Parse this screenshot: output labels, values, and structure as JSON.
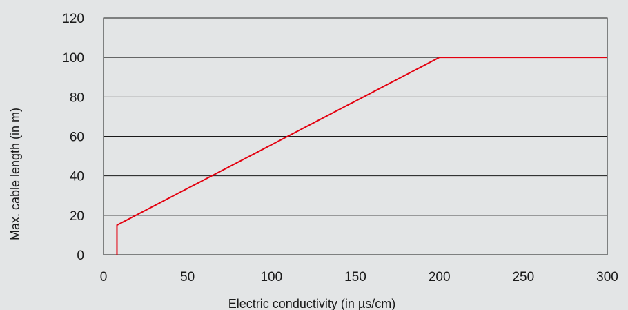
{
  "chart_data": {
    "type": "line",
    "title": "",
    "xlabel": "Electric conductivity (in µs/cm)",
    "ylabel": "Max. cable length (in m)",
    "xlim": [
      0,
      300
    ],
    "ylim": [
      0,
      120
    ],
    "x_ticks": [
      "0",
      "50",
      "100",
      "150",
      "200",
      "250",
      "300"
    ],
    "y_ticks": [
      "0",
      "20",
      "40",
      "60",
      "80",
      "100",
      "120"
    ],
    "grid": "horizontal",
    "series": [
      {
        "color": "#e3000f",
        "points": [
          [
            8,
            0
          ],
          [
            8,
            15
          ],
          [
            200,
            100
          ],
          [
            300,
            100
          ]
        ]
      }
    ],
    "colors": {
      "background": "#e3e5e6",
      "plot_area": "#e3e5e6",
      "gridline": "#1a1a1a",
      "text": "#1a1a1a",
      "line": "#e3000f"
    }
  }
}
